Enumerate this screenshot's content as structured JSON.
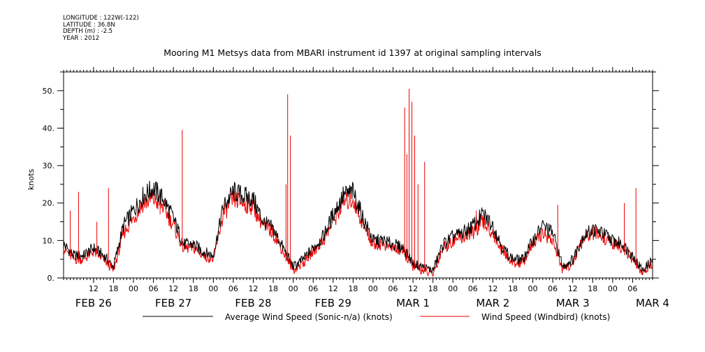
{
  "meta": {
    "longitude": "LONGITUDE : 122W(-122)",
    "latitude": "LATITUDE : 36.8N",
    "depth": "DEPTH (m) : -2.5",
    "year": "YEAR : 2012"
  },
  "title": "Mooring M1 Metsys data from MBARI instrument id 1397 at original sampling intervals",
  "chart_data": {
    "type": "line",
    "title": "Mooring M1 Metsys data from MBARI instrument id 1397 at original sampling intervals",
    "ylabel": "knots",
    "xlabel": "",
    "ylim": [
      0,
      55
    ],
    "yticks": [
      0,
      10,
      20,
      30,
      40,
      50
    ],
    "ytick_labels": [
      "0.",
      "10.",
      "20.",
      "30.",
      "40.",
      "50."
    ],
    "xlim": [
      "2012-02-26 03:00",
      "2012-03-04 12:00"
    ],
    "hour_ticks": [
      {
        "t": "2012-02-26 12:00",
        "label": "12"
      },
      {
        "t": "2012-02-26 18:00",
        "label": "18"
      },
      {
        "t": "2012-02-27 00:00",
        "label": "00"
      },
      {
        "t": "2012-02-27 06:00",
        "label": "06"
      },
      {
        "t": "2012-02-27 12:00",
        "label": "12"
      },
      {
        "t": "2012-02-27 18:00",
        "label": "18"
      },
      {
        "t": "2012-02-28 00:00",
        "label": "00"
      },
      {
        "t": "2012-02-28 06:00",
        "label": "06"
      },
      {
        "t": "2012-02-28 12:00",
        "label": "12"
      },
      {
        "t": "2012-02-28 18:00",
        "label": "18"
      },
      {
        "t": "2012-02-29 00:00",
        "label": "00"
      },
      {
        "t": "2012-02-29 06:00",
        "label": "06"
      },
      {
        "t": "2012-02-29 12:00",
        "label": "12"
      },
      {
        "t": "2012-02-29 18:00",
        "label": "18"
      },
      {
        "t": "2012-03-01 00:00",
        "label": "00"
      },
      {
        "t": "2012-03-01 06:00",
        "label": "06"
      },
      {
        "t": "2012-03-01 12:00",
        "label": "12"
      },
      {
        "t": "2012-03-01 18:00",
        "label": "18"
      },
      {
        "t": "2012-03-02 00:00",
        "label": "00"
      },
      {
        "t": "2012-03-02 06:00",
        "label": "06"
      },
      {
        "t": "2012-03-02 12:00",
        "label": "12"
      },
      {
        "t": "2012-03-02 18:00",
        "label": "18"
      },
      {
        "t": "2012-03-03 00:00",
        "label": "00"
      },
      {
        "t": "2012-03-03 06:00",
        "label": "06"
      },
      {
        "t": "2012-03-03 12:00",
        "label": "12"
      },
      {
        "t": "2012-03-03 18:00",
        "label": "18"
      },
      {
        "t": "2012-03-04 00:00",
        "label": "00"
      },
      {
        "t": "2012-03-04 06:00",
        "label": "06"
      }
    ],
    "day_labels": [
      {
        "t": "2012-02-26 12:00",
        "label": "FEB 26"
      },
      {
        "t": "2012-02-27 12:00",
        "label": "FEB 27"
      },
      {
        "t": "2012-02-28 12:00",
        "label": "FEB 28"
      },
      {
        "t": "2012-02-29 12:00",
        "label": "FEB 29"
      },
      {
        "t": "2012-03-01 12:00",
        "label": "MAR  1"
      },
      {
        "t": "2012-03-02 12:00",
        "label": "MAR  2"
      },
      {
        "t": "2012-03-03 12:00",
        "label": "MAR  3"
      },
      {
        "t": "2012-03-04 12:00",
        "label": "MAR  4"
      }
    ],
    "legend_placement": "bottom",
    "grid": false,
    "series": [
      {
        "name": "Average Wind Speed (Sonic-n/a) (knots)",
        "color": "#000000",
        "points": [
          [
            "2012-02-26 03:00",
            9
          ],
          [
            "2012-02-26 06:00",
            6
          ],
          [
            "2012-02-26 09:00",
            6
          ],
          [
            "2012-02-26 12:00",
            8
          ],
          [
            "2012-02-26 15:00",
            6
          ],
          [
            "2012-02-26 18:00",
            3
          ],
          [
            "2012-02-26 21:00",
            14
          ],
          [
            "2012-02-27 00:00",
            18
          ],
          [
            "2012-02-27 03:00",
            22
          ],
          [
            "2012-02-27 06:00",
            24
          ],
          [
            "2012-02-27 09:00",
            21
          ],
          [
            "2012-02-27 12:00",
            16
          ],
          [
            "2012-02-27 15:00",
            9
          ],
          [
            "2012-02-27 18:00",
            9
          ],
          [
            "2012-02-27 21:00",
            7
          ],
          [
            "2012-02-28 00:00",
            6
          ],
          [
            "2012-02-28 03:00",
            19
          ],
          [
            "2012-02-28 06:00",
            23
          ],
          [
            "2012-02-28 09:00",
            22
          ],
          [
            "2012-02-28 12:00",
            21
          ],
          [
            "2012-02-28 15:00",
            15
          ],
          [
            "2012-02-28 18:00",
            13
          ],
          [
            "2012-02-28 21:00",
            8
          ],
          [
            "2012-02-29 00:00",
            3
          ],
          [
            "2012-02-29 03:00",
            5
          ],
          [
            "2012-02-29 06:00",
            8
          ],
          [
            "2012-02-29 09:00",
            11
          ],
          [
            "2012-02-29 12:00",
            17
          ],
          [
            "2012-02-29 15:00",
            22
          ],
          [
            "2012-02-29 18:00",
            23
          ],
          [
            "2012-02-29 21:00",
            16
          ],
          [
            "2012-03-01 00:00",
            10
          ],
          [
            "2012-03-01 03:00",
            10
          ],
          [
            "2012-03-01 06:00",
            9
          ],
          [
            "2012-03-01 09:00",
            8
          ],
          [
            "2012-03-01 12:00",
            4
          ],
          [
            "2012-03-01 15:00",
            3
          ],
          [
            "2012-03-01 18:00",
            2
          ],
          [
            "2012-03-01 21:00",
            9
          ],
          [
            "2012-03-02 00:00",
            11
          ],
          [
            "2012-03-02 03:00",
            12
          ],
          [
            "2012-03-02 06:00",
            14
          ],
          [
            "2012-03-02 09:00",
            17
          ],
          [
            "2012-03-02 12:00",
            14
          ],
          [
            "2012-03-02 15:00",
            8
          ],
          [
            "2012-03-02 18:00",
            5
          ],
          [
            "2012-03-02 21:00",
            5
          ],
          [
            "2012-03-03 00:00",
            10
          ],
          [
            "2012-03-03 03:00",
            14
          ],
          [
            "2012-03-03 06:00",
            12
          ],
          [
            "2012-03-03 09:00",
            3
          ],
          [
            "2012-03-03 12:00",
            5
          ],
          [
            "2012-03-03 15:00",
            11
          ],
          [
            "2012-03-03 18:00",
            13
          ],
          [
            "2012-03-03 21:00",
            12
          ],
          [
            "2012-03-04 00:00",
            10
          ],
          [
            "2012-03-04 03:00",
            9
          ],
          [
            "2012-03-04 06:00",
            6
          ],
          [
            "2012-03-04 09:00",
            2
          ],
          [
            "2012-03-04 12:00",
            5
          ]
        ]
      },
      {
        "name": "Wind Speed (Windbird) (knots)",
        "color": "#ee0000",
        "points": [
          [
            "2012-02-26 03:00",
            8
          ],
          [
            "2012-02-26 06:00",
            5
          ],
          [
            "2012-02-26 09:00",
            5
          ],
          [
            "2012-02-26 12:00",
            7
          ],
          [
            "2012-02-26 15:00",
            5
          ],
          [
            "2012-02-26 18:00",
            2
          ],
          [
            "2012-02-26 21:00",
            12
          ],
          [
            "2012-02-27 00:00",
            16
          ],
          [
            "2012-02-27 03:00",
            20
          ],
          [
            "2012-02-27 06:00",
            21
          ],
          [
            "2012-02-27 09:00",
            19
          ],
          [
            "2012-02-27 12:00",
            14
          ],
          [
            "2012-02-27 15:00",
            8
          ],
          [
            "2012-02-27 18:00",
            8
          ],
          [
            "2012-02-27 21:00",
            6
          ],
          [
            "2012-02-28 00:00",
            5
          ],
          [
            "2012-02-28 03:00",
            17
          ],
          [
            "2012-02-28 06:00",
            21
          ],
          [
            "2012-02-28 09:00",
            20
          ],
          [
            "2012-02-28 12:00",
            19
          ],
          [
            "2012-02-28 15:00",
            14
          ],
          [
            "2012-02-28 18:00",
            12
          ],
          [
            "2012-02-28 21:00",
            7
          ],
          [
            "2012-02-29 00:00",
            2
          ],
          [
            "2012-02-29 03:00",
            4
          ],
          [
            "2012-02-29 06:00",
            7
          ],
          [
            "2012-02-29 09:00",
            10
          ],
          [
            "2012-02-29 12:00",
            15
          ],
          [
            "2012-02-29 15:00",
            20
          ],
          [
            "2012-02-29 18:00",
            21
          ],
          [
            "2012-02-29 21:00",
            14
          ],
          [
            "2012-03-01 00:00",
            9
          ],
          [
            "2012-03-01 03:00",
            9
          ],
          [
            "2012-03-01 06:00",
            8
          ],
          [
            "2012-03-01 09:00",
            7
          ],
          [
            "2012-03-01 12:00",
            3
          ],
          [
            "2012-03-01 15:00",
            2
          ],
          [
            "2012-03-01 18:00",
            1
          ],
          [
            "2012-03-01 21:00",
            8
          ],
          [
            "2012-03-02 00:00",
            10
          ],
          [
            "2012-03-02 03:00",
            11
          ],
          [
            "2012-03-02 06:00",
            12
          ],
          [
            "2012-03-02 09:00",
            15
          ],
          [
            "2012-03-02 12:00",
            12
          ],
          [
            "2012-03-02 15:00",
            7
          ],
          [
            "2012-03-02 18:00",
            4
          ],
          [
            "2012-03-02 21:00",
            4
          ],
          [
            "2012-03-03 00:00",
            9
          ],
          [
            "2012-03-03 03:00",
            12
          ],
          [
            "2012-03-03 06:00",
            10
          ],
          [
            "2012-03-03 09:00",
            2
          ],
          [
            "2012-03-03 12:00",
            4
          ],
          [
            "2012-03-03 15:00",
            10
          ],
          [
            "2012-03-03 18:00",
            12
          ],
          [
            "2012-03-03 21:00",
            11
          ],
          [
            "2012-03-04 00:00",
            9
          ],
          [
            "2012-03-04 03:00",
            8
          ],
          [
            "2012-03-04 06:00",
            5
          ],
          [
            "2012-03-04 09:00",
            1
          ],
          [
            "2012-03-04 12:00",
            4
          ]
        ],
        "spikes": [
          [
            "2012-02-26 05:00",
            18
          ],
          [
            "2012-02-26 07:30",
            23
          ],
          [
            "2012-02-26 13:00",
            15
          ],
          [
            "2012-02-26 16:30",
            24
          ],
          [
            "2012-02-27 08:00",
            17
          ],
          [
            "2012-02-27 14:40",
            39.5
          ],
          [
            "2012-02-28 09:30",
            18
          ],
          [
            "2012-02-28 21:50",
            25
          ],
          [
            "2012-02-28 22:20",
            49
          ],
          [
            "2012-02-28 23:10",
            38
          ],
          [
            "2012-03-01 09:30",
            45.5
          ],
          [
            "2012-03-01 10:10",
            33
          ],
          [
            "2012-03-01 10:50",
            50.5
          ],
          [
            "2012-03-01 11:40",
            47
          ],
          [
            "2012-03-01 12:30",
            38
          ],
          [
            "2012-03-01 13:30",
            25
          ],
          [
            "2012-03-01 15:30",
            31
          ],
          [
            "2012-03-02 07:00",
            18
          ],
          [
            "2012-03-03 07:30",
            19.5
          ],
          [
            "2012-03-04 03:30",
            20
          ],
          [
            "2012-03-04 07:00",
            24
          ]
        ]
      }
    ]
  }
}
